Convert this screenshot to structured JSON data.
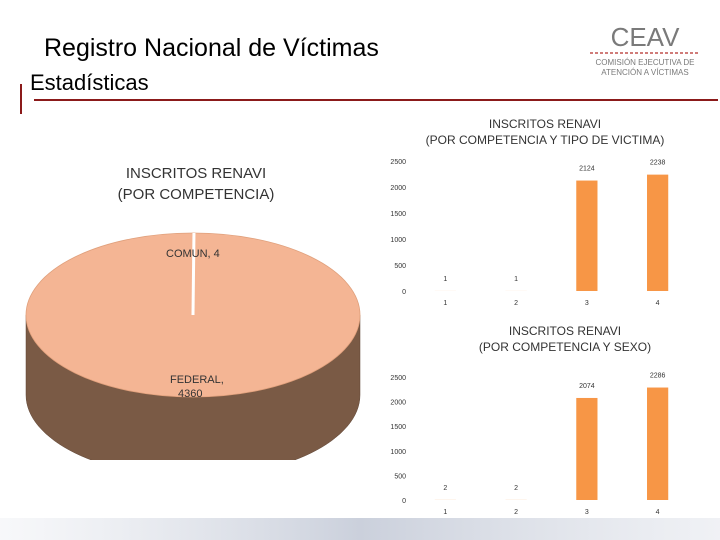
{
  "header": {
    "title": "Registro Nacional de Víctimas",
    "subtitle": "Estadísticas"
  },
  "logo": {
    "name": "CEAV",
    "line1": "COMISIÓN EJECUTIVA DE",
    "line2": "ATENCIÓN A VÍCTIMAS"
  },
  "colors": {
    "accent": "#8b1a1a",
    "bar": "#f79646",
    "pie_top": "#f4b594",
    "pie_side": "#7a5a45"
  },
  "chart_data": [
    {
      "type": "pie",
      "title_line1": "INSCRITOS RENAVI",
      "title_line2": "(POR COMPETENCIA)",
      "slices": [
        {
          "label": "COMUN, 4",
          "value": 4
        },
        {
          "label_line1": "FEDERAL,",
          "label_line2": "4360",
          "value": 4360
        }
      ]
    },
    {
      "type": "bar",
      "title_line1": "INSCRITOS RENAVI",
      "title_line2": "(POR COMPETENCIA Y TIPO DE VICTIMA)",
      "categories": [
        "1",
        "2",
        "3",
        "4"
      ],
      "values": [
        1,
        1,
        2124,
        2238
      ],
      "data_labels": [
        "1",
        "1",
        "2124",
        "2238"
      ],
      "yticks": [
        "0",
        "500",
        "1000",
        "1500",
        "2000",
        "2500"
      ],
      "ylim": [
        0,
        2500
      ]
    },
    {
      "type": "bar",
      "title_line1": "INSCRITOS RENAVI",
      "title_line2": "(POR COMPETENCIA Y SEXO)",
      "categories": [
        "1",
        "2",
        "3",
        "4"
      ],
      "values": [
        2,
        2,
        2074,
        2286
      ],
      "data_labels": [
        "2",
        "2",
        "2074",
        "2286"
      ],
      "yticks": [
        "0",
        "500",
        "1000",
        "1500",
        "2000",
        "2500"
      ],
      "ylim": [
        0,
        2500
      ]
    }
  ]
}
